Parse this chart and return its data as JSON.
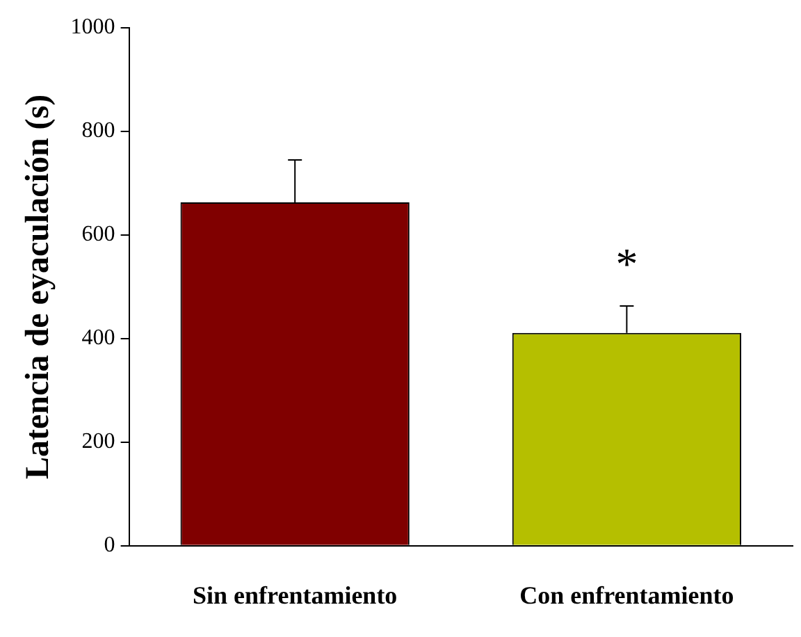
{
  "chart_data": {
    "type": "bar",
    "ylabel": "Latencia de eyaculación (s)",
    "categories": [
      "Sin enfrentamiento",
      "Con enfrentamiento"
    ],
    "values": [
      663,
      411
    ],
    "colors": [
      "#800000",
      "#b5bf00"
    ],
    "errors": [
      [
        663,
        745
      ],
      [
        411,
        463
      ]
    ],
    "ylim": [
      0,
      1000
    ],
    "yticks": [
      0,
      200,
      400,
      600,
      800,
      1000
    ],
    "grid": false,
    "legend": false,
    "annotations": [
      "*"
    ]
  }
}
